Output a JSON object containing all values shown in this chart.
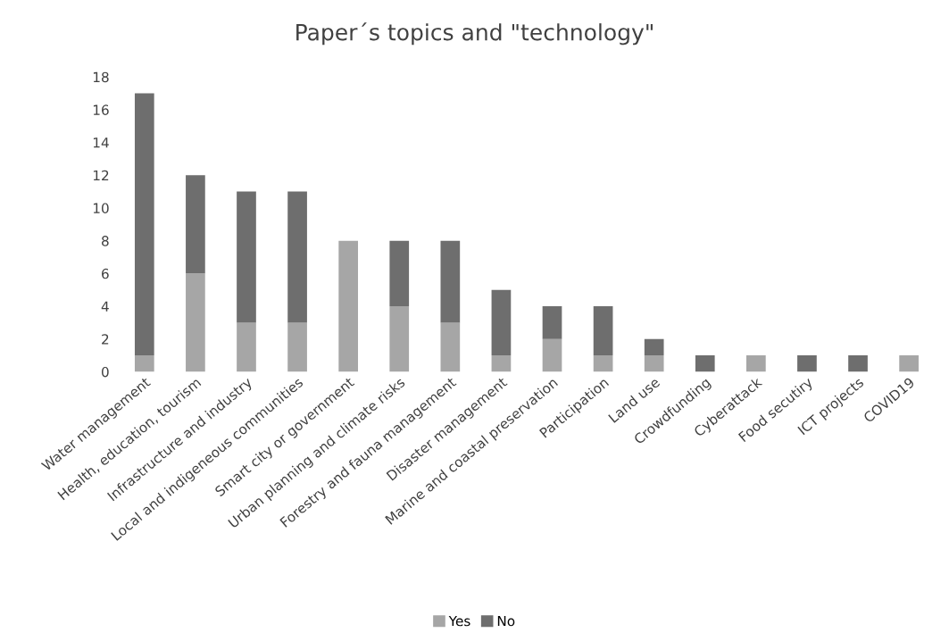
{
  "chart_data": {
    "type": "bar",
    "title": "Paper´s topics and \"technology\"",
    "stacked": true,
    "categories": [
      "Water management",
      "Health, education, tourism",
      "Infrastructure and industry",
      "Local and indigeneous communities",
      "Smart city or government",
      "Urban planning and climate risks",
      "Forestry and fauna management",
      "Disaster management",
      "Marine and coastal preservation",
      "Participation",
      "Land use",
      "Crowdfunding",
      "Cyberattack",
      "Food secutiry",
      "ICT projects",
      "COVID19"
    ],
    "series": [
      {
        "name": "Yes",
        "color": "#a6a6a6",
        "values": [
          1,
          6,
          3,
          3,
          8,
          4,
          3,
          1,
          2,
          1,
          1,
          0,
          1,
          0,
          0,
          1
        ]
      },
      {
        "name": "No",
        "color": "#6e6e6e",
        "values": [
          16,
          6,
          8,
          8,
          0,
          4,
          5,
          4,
          2,
          3,
          1,
          1,
          0,
          1,
          1,
          0
        ]
      }
    ],
    "ylim": [
      0,
      18
    ],
    "yticks": [
      0,
      2,
      4,
      6,
      8,
      10,
      12,
      14,
      16,
      18
    ],
    "grid": false,
    "legend": "bottom"
  }
}
